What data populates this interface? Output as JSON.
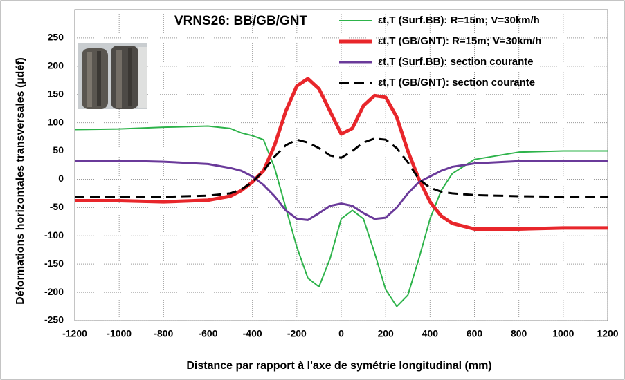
{
  "chart_data": {
    "type": "line",
    "title": "VRNS26: BB/GB/GNT",
    "x_label": "Distance par rapport à l'axe de symétrie longitudinal (mm)",
    "y_label": "Déformations horizontales  transversales  (µdéf)",
    "x": [
      -1200,
      -1000,
      -800,
      -600,
      -500,
      -450,
      -400,
      -350,
      -300,
      -250,
      -200,
      -150,
      -100,
      -50,
      0,
      50,
      100,
      150,
      200,
      250,
      300,
      350,
      400,
      450,
      500,
      600,
      800,
      1000,
      1200
    ],
    "series": [
      {
        "name": "εt,T (Surf.BB): R=15m; V=30km/h",
        "color": "#2db34a",
        "width": 2,
        "dash": false,
        "values": [
          88,
          89,
          92,
          94,
          90,
          82,
          77,
          70,
          20,
          -50,
          -120,
          -175,
          -190,
          -140,
          -70,
          -55,
          -70,
          -130,
          -195,
          -225,
          -205,
          -140,
          -70,
          -20,
          10,
          35,
          48,
          50,
          50
        ]
      },
      {
        "name": "εt,T (GB/GNT): R=15m; V=30km/h",
        "color": "#e8262b",
        "width": 5,
        "dash": false,
        "values": [
          -38,
          -38,
          -40,
          -37,
          -30,
          -20,
          -5,
          15,
          60,
          120,
          165,
          178,
          160,
          120,
          80,
          90,
          130,
          148,
          145,
          110,
          50,
          0,
          -40,
          -65,
          -78,
          -88,
          -88,
          -86,
          -86
        ]
      },
      {
        "name": "εt,T (Surf.BB): section courante",
        "color": "#6a3a9a",
        "width": 3,
        "dash": false,
        "values": [
          33,
          33,
          31,
          27,
          20,
          15,
          5,
          -10,
          -30,
          -55,
          -70,
          -72,
          -60,
          -47,
          -43,
          -47,
          -60,
          -70,
          -68,
          -50,
          -25,
          -5,
          5,
          15,
          22,
          28,
          32,
          33,
          33
        ]
      },
      {
        "name": "εt,T (GB/GNT): section courante",
        "color": "#000000",
        "width": 3,
        "dash": true,
        "values": [
          -31,
          -31,
          -31,
          -29,
          -25,
          -18,
          -5,
          15,
          40,
          60,
          70,
          65,
          55,
          42,
          38,
          50,
          65,
          72,
          70,
          55,
          30,
          0,
          -15,
          -22,
          -25,
          -28,
          -30,
          -31,
          -31
        ]
      }
    ],
    "xlim": [
      -1200,
      1200
    ],
    "xticks": [
      -1200,
      -1000,
      -800,
      -600,
      -400,
      -200,
      0,
      200,
      400,
      600,
      800,
      1000,
      1200
    ],
    "ylim": [
      -250,
      300
    ],
    "yticks": [
      -250,
      -200,
      -150,
      -100,
      -50,
      0,
      50,
      100,
      150,
      200,
      250
    ],
    "grid": true,
    "legend": "top-right"
  }
}
